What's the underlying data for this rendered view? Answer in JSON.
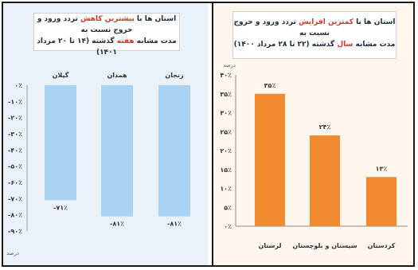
{
  "left_panel": {
    "caption_line1_a": "استان ها با",
    "caption_line1_hl": "بیشترین کاهش",
    "caption_line1_b": "تردد ورود و خروج نسبت به",
    "caption_line2_a": "مدت مشابه",
    "caption_line2_hl": "هفته",
    "caption_line2_b": "گذشته (۱۴ تا ۲۰ مرداد ۱۴۰۱)",
    "unit_label": "درصد",
    "accent_color": "#a9d3f2"
  },
  "right_panel": {
    "caption_line1_a": "استان ها با",
    "caption_line1_hl": "کمترین افزایش",
    "caption_line1_b": "تردد ورود و خروج نسبت به",
    "caption_line2_a": "مدت مشابه",
    "caption_line2_hl": "سال",
    "caption_line2_b": "گذشته (۲۲ تا ۲۸ مرداد ۱۴۰۰)",
    "unit_label": "درصد",
    "accent_color": "#f28a30"
  },
  "chart_data": [
    {
      "type": "bar",
      "title": "",
      "categories": [
        "گیلان",
        "همدان",
        "زنجان"
      ],
      "values": [
        -71,
        -81,
        -81
      ],
      "value_labels": [
        "-۷۱٪",
        "-۸۱٪",
        "-۸۱٪"
      ],
      "ylim": [
        -90,
        0
      ],
      "yticks": [
        "۰٪",
        "-۱۰٪",
        "-۲۰٪",
        "-۳۰٪",
        "-۴۰٪",
        "-۵۰٪",
        "-۶۰٪",
        "-۷۰٪",
        "-۸۰٪",
        "-۹۰٪"
      ],
      "ylabel": "درصد",
      "grid": false,
      "legend": "none"
    },
    {
      "type": "bar",
      "title": "",
      "categories": [
        "لرستان",
        "سیستان و بلوچستان",
        "کردستان"
      ],
      "values": [
        35,
        24,
        13
      ],
      "value_labels": [
        "۳۵٪",
        "۲۴٪",
        "۱۳٪"
      ],
      "ylim": [
        0,
        40
      ],
      "yticks": [
        "۰٪",
        "۵٪",
        "۱۰٪",
        "۱۵٪",
        "۲۰٪",
        "۲۵٪",
        "۳۰٪",
        "۳۵٪",
        "۴۰٪"
      ],
      "ylabel": "درصد",
      "grid": false,
      "legend": "none"
    }
  ]
}
